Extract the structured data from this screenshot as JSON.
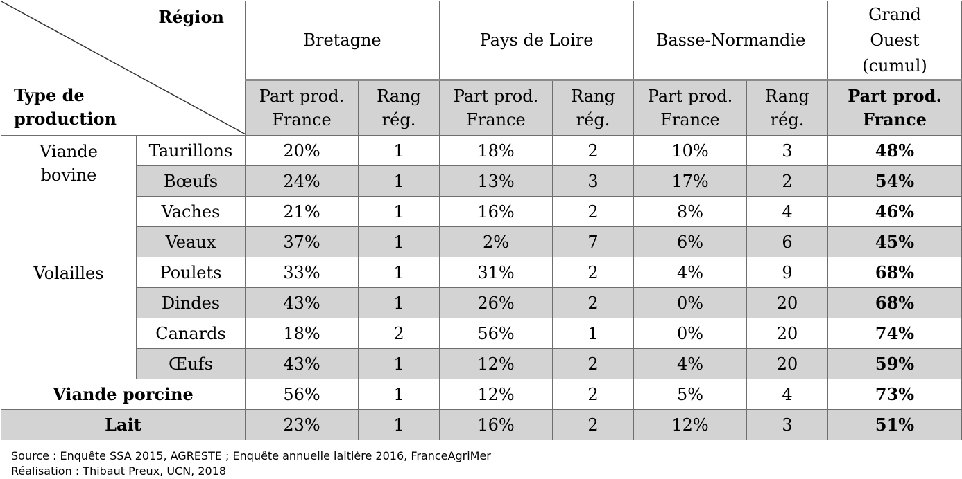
{
  "header": {
    "corner_region": "Région",
    "corner_type_line1": "Type de",
    "corner_type_line2": "production",
    "regions": [
      "Bretagne",
      "Pays de Loire",
      "Basse-Normandie"
    ],
    "grand_ouest_line1": "Grand",
    "grand_ouest_line2": "Ouest",
    "grand_ouest_line3": "(cumul)",
    "part_line1": "Part prod.",
    "part_line2": "France",
    "rang_line1": "Rang",
    "rang_line2": "rég."
  },
  "categories": {
    "bovine_line1": "Viande",
    "bovine_line2": "bovine",
    "volailles": "Volailles",
    "porcine": "Viande porcine",
    "lait": "Lait"
  },
  "rows": [
    {
      "label": "Taurillons",
      "bre_part": "20%",
      "bre_rang": "1",
      "pdl_part": "18%",
      "pdl_rang": "2",
      "bn_part": "10%",
      "bn_rang": "3",
      "go": "48%"
    },
    {
      "label": "Bœufs",
      "bre_part": "24%",
      "bre_rang": "1",
      "pdl_part": "13%",
      "pdl_rang": "3",
      "bn_part": "17%",
      "bn_rang": "2",
      "go": "54%"
    },
    {
      "label": "Vaches",
      "bre_part": "21%",
      "bre_rang": "1",
      "pdl_part": "16%",
      "pdl_rang": "2",
      "bn_part": "8%",
      "bn_rang": "4",
      "go": "46%"
    },
    {
      "label": "Veaux",
      "bre_part": "37%",
      "bre_rang": "1",
      "pdl_part": "2%",
      "pdl_rang": "7",
      "bn_part": "6%",
      "bn_rang": "6",
      "go": "45%"
    },
    {
      "label": "Poulets",
      "bre_part": "33%",
      "bre_rang": "1",
      "pdl_part": "31%",
      "pdl_rang": "2",
      "bn_part": "4%",
      "bn_rang": "9",
      "go": "68%"
    },
    {
      "label": "Dindes",
      "bre_part": "43%",
      "bre_rang": "1",
      "pdl_part": "26%",
      "pdl_rang": "2",
      "bn_part": "0%",
      "bn_rang": "20",
      "go": "68%"
    },
    {
      "label": "Canards",
      "bre_part": "18%",
      "bre_rang": "2",
      "pdl_part": "56%",
      "pdl_rang": "1",
      "bn_part": "0%",
      "bn_rang": "20",
      "go": "74%"
    },
    {
      "label": "Œufs",
      "bre_part": "43%",
      "bre_rang": "1",
      "pdl_part": "12%",
      "pdl_rang": "2",
      "bn_part": "4%",
      "bn_rang": "20",
      "go": "59%"
    },
    {
      "label": "Viande porcine",
      "bre_part": "56%",
      "bre_rang": "1",
      "pdl_part": "12%",
      "pdl_rang": "2",
      "bn_part": "5%",
      "bn_rang": "4",
      "go": "73%"
    },
    {
      "label": "Lait",
      "bre_part": "23%",
      "bre_rang": "1",
      "pdl_part": "16%",
      "pdl_rang": "2",
      "bn_part": "12%",
      "bn_rang": "3",
      "go": "51%"
    }
  ],
  "footer": {
    "source": "Source : Enquête SSA 2015, AGRESTE ; Enquête annuelle laitière 2016, FranceAgriMer",
    "credit": "Réalisation : Thibaut Preux, UCN, 2018"
  }
}
